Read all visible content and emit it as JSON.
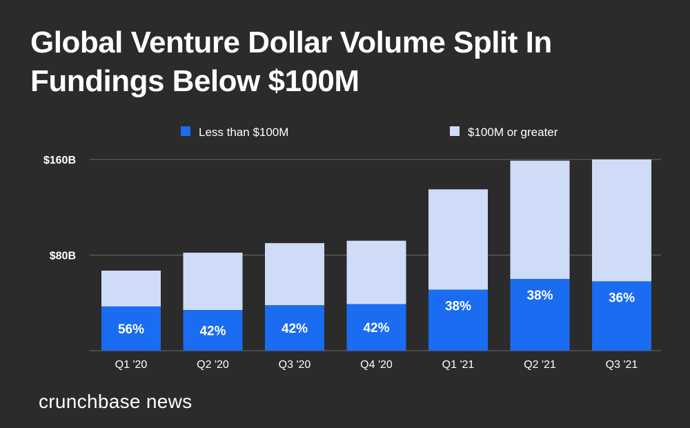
{
  "title_lines": [
    "Global Venture Dollar Volume Split In",
    "Fundings Below $100M"
  ],
  "brand": "crunchbase news",
  "colors": {
    "background": "#2b2b2b",
    "below": "#1a6cf0",
    "above": "#cfdcf7",
    "gridline": "#6a6a6a",
    "text": "#ffffff"
  },
  "chart_data": {
    "type": "bar",
    "stacked": true,
    "title": "Global Venture Dollar Volume Split In Fundings Below $100M",
    "categories": [
      "Q1 '20",
      "Q2 '20",
      "Q3 '20",
      "Q4 '20",
      "Q1 '21",
      "Q2 '21",
      "Q3 '21"
    ],
    "series": [
      {
        "name": "Less than $100M",
        "values": [
          37,
          34,
          38,
          39,
          51,
          60,
          58
        ]
      },
      {
        "name": "$100M or greater",
        "values": [
          30,
          48,
          52,
          53,
          84,
          99,
          102
        ]
      }
    ],
    "data_labels": [
      "56%",
      "42%",
      "42%",
      "42%",
      "38%",
      "38%",
      "36%"
    ],
    "yticks": [
      {
        "value": 80,
        "label": "$80B"
      },
      {
        "value": 160,
        "label": "$160B"
      }
    ],
    "ylim": [
      0,
      160
    ],
    "legend_position": "top",
    "grid": true,
    "xlabel": "",
    "ylabel": ""
  }
}
